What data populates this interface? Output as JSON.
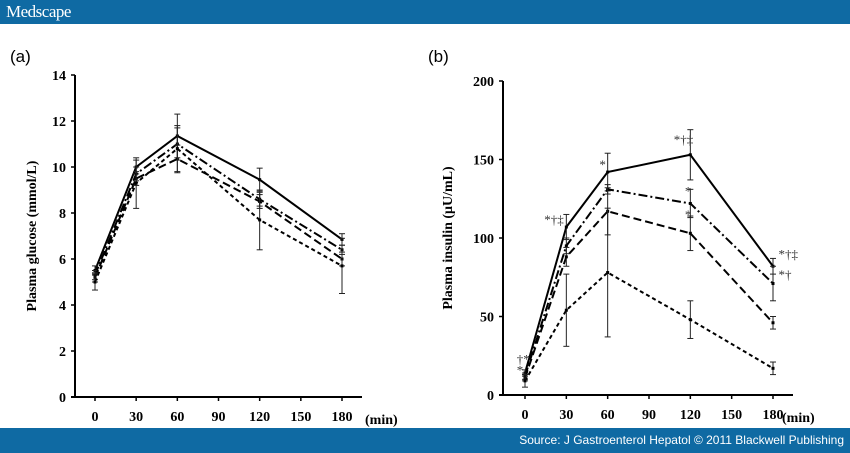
{
  "header": {
    "logo": "Medscape"
  },
  "footer": {
    "source": "Source: J Gastroenterol Hepatol © 2011 Blackwell Publishing"
  },
  "colors": {
    "bar": "#0f6aa3",
    "lines": "#000000"
  },
  "chart_data": [
    {
      "type": "line",
      "panel_label": "(a)",
      "ylabel": "Plasma glucose (mmol/L)",
      "xlabel": "(min)",
      "x": [
        0,
        30,
        60,
        120,
        180
      ],
      "xticks": [
        "0",
        "30",
        "60",
        "90",
        "120",
        "150",
        "180"
      ],
      "xtick_values": [
        0,
        30,
        60,
        90,
        120,
        150,
        180
      ],
      "yticks": [
        "0",
        "2",
        "4",
        "6",
        "8",
        "10",
        "12",
        "14"
      ],
      "ylim": [
        0,
        14
      ],
      "xlim": [
        -15,
        195
      ],
      "grid": false,
      "series": [
        {
          "style": "solid",
          "values": [
            5.5,
            10.0,
            11.35,
            9.45,
            6.85
          ],
          "err": [
            0.2,
            0.3,
            0.95,
            0.5,
            0.25
          ]
        },
        {
          "style": "dash-dot",
          "values": [
            5.3,
            9.7,
            11.0,
            8.6,
            6.4
          ],
          "err": [
            0.2,
            0.3,
            0.7,
            0.3,
            0.2
          ]
        },
        {
          "style": "long-dash",
          "values": [
            5.2,
            9.5,
            10.35,
            8.5,
            6.0
          ],
          "err": [
            0.2,
            0.3,
            0.6,
            0.3,
            0.3
          ]
        },
        {
          "style": "short-dash",
          "values": [
            5.0,
            9.3,
            10.8,
            7.7,
            5.7
          ],
          "err": [
            0.35,
            1.1,
            1.0,
            1.3,
            1.2
          ]
        }
      ],
      "annotations": []
    },
    {
      "type": "line",
      "panel_label": "(b)",
      "ylabel": "Plasma insulin (μU/mL)",
      "xlabel": "(min)",
      "x": [
        0,
        30,
        60,
        120,
        180
      ],
      "xticks": [
        "0",
        "30",
        "60",
        "90",
        "120",
        "150",
        "180"
      ],
      "xtick_values": [
        0,
        30,
        60,
        90,
        120,
        150,
        180
      ],
      "yticks": [
        "0",
        "50",
        "100",
        "150",
        "200"
      ],
      "ylim": [
        0,
        200
      ],
      "xlim": [
        -15,
        195
      ],
      "grid": false,
      "series": [
        {
          "style": "solid",
          "values": [
            14,
            107,
            142,
            153,
            82
          ],
          "err": [
            2,
            8,
            12,
            16,
            5
          ]
        },
        {
          "style": "dash-dot",
          "values": [
            12,
            95,
            131,
            122,
            71
          ],
          "err": [
            2,
            5,
            3,
            9,
            11
          ]
        },
        {
          "style": "long-dash",
          "values": [
            11,
            88,
            117,
            103,
            46
          ],
          "err": [
            2,
            6,
            15,
            11,
            4
          ]
        },
        {
          "style": "short-dash",
          "values": [
            9,
            54,
            78,
            48,
            17
          ],
          "err": [
            4,
            23,
            41,
            12,
            4
          ]
        }
      ],
      "annotations": [
        {
          "text": "†*",
          "x": -6,
          "y": 20
        },
        {
          "text": "*",
          "x": -6,
          "y": 13
        },
        {
          "text": "*†‡",
          "x": 14,
          "y": 109
        },
        {
          "text": "*",
          "x": 54,
          "y": 144
        },
        {
          "text": "*†‡",
          "x": 108,
          "y": 160
        },
        {
          "text": "*",
          "x": 116,
          "y": 127
        },
        {
          "text": "*",
          "x": 116,
          "y": 112
        },
        {
          "text": "*†‡",
          "x": 184,
          "y": 87
        },
        {
          "text": "*†",
          "x": 184,
          "y": 74
        }
      ]
    }
  ]
}
